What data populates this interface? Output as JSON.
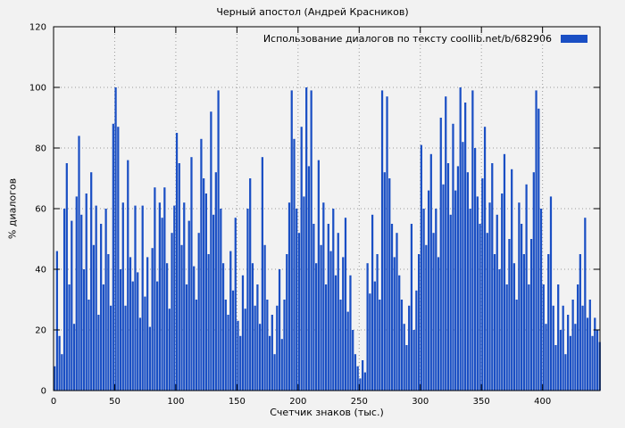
{
  "title": "Черный апостол (Андрей Красников)",
  "legend": {
    "label": "Использование диалогов по тексту coollib.net/b/682906"
  },
  "colors": {
    "bar": "#1a4fc4",
    "background": "#f2f2f2",
    "grid": "#9a9a9a",
    "axis": "#000000"
  },
  "chart_data": {
    "type": "bar",
    "title": "Черный апостол (Андрей Красников)",
    "legend": "Использование диалогов по тексту coollib.net/b/682906",
    "xlabel": "Счетчик знаков (тыс.)",
    "ylabel": "% диалогов",
    "xlim": [
      0,
      447
    ],
    "ylim": [
      0,
      120
    ],
    "xticks": [
      0,
      50,
      100,
      150,
      200,
      250,
      300,
      350,
      400
    ],
    "yticks": [
      0,
      20,
      40,
      60,
      80,
      100,
      120
    ],
    "grid": true,
    "legend_position": "top-right",
    "x_start": 0,
    "x_step": 2,
    "values": [
      8,
      46,
      18,
      12,
      60,
      75,
      35,
      56,
      22,
      64,
      84,
      58,
      40,
      65,
      30,
      72,
      48,
      61,
      25,
      55,
      35,
      60,
      45,
      28,
      88,
      100,
      87,
      40,
      62,
      28,
      76,
      44,
      36,
      61,
      39,
      24,
      61,
      31,
      44,
      21,
      47,
      67,
      36,
      62,
      57,
      67,
      42,
      27,
      52,
      61,
      85,
      75,
      48,
      62,
      35,
      56,
      77,
      41,
      30,
      52,
      83,
      70,
      65,
      45,
      92,
      58,
      72,
      99,
      60,
      42,
      30,
      25,
      46,
      33,
      57,
      23,
      18,
      38,
      27,
      60,
      70,
      42,
      28,
      35,
      22,
      77,
      48,
      30,
      18,
      25,
      12,
      28,
      40,
      17,
      30,
      45,
      62,
      99,
      83,
      60,
      52,
      87,
      64,
      100,
      74,
      99,
      55,
      42,
      76,
      48,
      62,
      35,
      55,
      46,
      60,
      38,
      52,
      30,
      44,
      57,
      26,
      38,
      20,
      12,
      8,
      4,
      10,
      6,
      42,
      32,
      58,
      36,
      45,
      30,
      99,
      72,
      97,
      70,
      55,
      44,
      52,
      38,
      30,
      22,
      15,
      28,
      55,
      20,
      33,
      45,
      81,
      60,
      48,
      66,
      78,
      52,
      60,
      44,
      90,
      68,
      97,
      75,
      58,
      88,
      66,
      74,
      100,
      82,
      95,
      72,
      60,
      99,
      80,
      64,
      55,
      70,
      87,
      52,
      62,
      75,
      45,
      58,
      40,
      65,
      78,
      35,
      50,
      73,
      42,
      30,
      62,
      55,
      45,
      68,
      35,
      50,
      72,
      99,
      93,
      60,
      35,
      22,
      45,
      64,
      28,
      15,
      35,
      20,
      28,
      12,
      25,
      18,
      30,
      22,
      35,
      45,
      28,
      57,
      24,
      30,
      18,
      24,
      20,
      16
    ]
  }
}
